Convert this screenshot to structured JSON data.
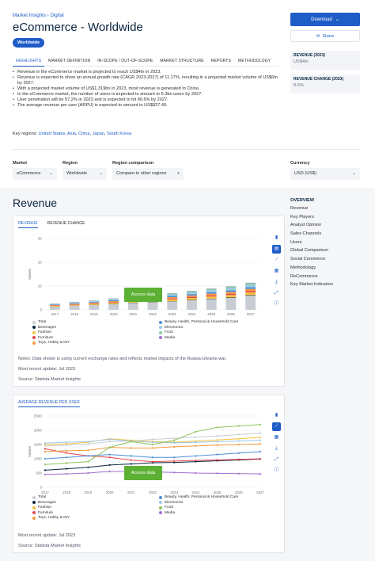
{
  "breadcrumb": "Market Insights › Digital",
  "title": "eCommerce - Worldwide",
  "region_pill": "Worldwide",
  "download_label": "Download",
  "share_label": "Share",
  "kpis": [
    {
      "label": "REVENUE (2023)",
      "value": "US$4tn"
    },
    {
      "label": "REVENUE CHANGE (2023)",
      "value": "9.6%"
    }
  ],
  "tabs": [
    "HIGHLIGHTS",
    "MARKET DEFINITION",
    "IN-SCOPE / OUT-OF-SCOPE",
    "MARKET STRUCTURE",
    "REPORTS",
    "METHODOLOGY"
  ],
  "highlights": [
    "Revenue in the eCommerce market is projected to reach US$4tn in 2023.",
    "Revenue is expected to show an annual growth rate (CAGR 2023-2027) of 11.17%, resulting in a projected market volume of US$6tn by 2027.",
    "With a projected market volume of US$1,319bn in 2023, most revenue is generated in China.",
    "In the eCommerce market, the number of users is expected to amount to 5.3bn users by 2027.",
    "User penetration will be 57.2% in 2023 and is expected to hit 66.6% by 2027.",
    "The average revenue per user (ARPU) is expected to amount to US$827.40."
  ],
  "key_regions_label": "Key regions:",
  "key_regions": "United States, Asia, China, Japan, South Korea",
  "filters": {
    "market_label": "Market",
    "market_value": "eCommerce",
    "region_label": "Region",
    "region_value": "Worldwide",
    "comparison_label": "Region comparison",
    "comparison_value": "Compare to other regions",
    "currency_label": "Currency",
    "currency_value": "USD (US$)"
  },
  "section_title": "Revenue",
  "chart1": {
    "tabs": [
      "REVENUE",
      "REVENUE CHANGE"
    ],
    "access_label": "Access data",
    "notes": "Notes: Data shown is using current exchange rates and reflects market impacts of the Russia-Ukraine war.",
    "update": "Most recent update: Jul 2023",
    "source": "Source: Statista Market Insights"
  },
  "chart2": {
    "tabs": [
      "AVERAGE REVENUE PER USER"
    ],
    "access_label": "Access data",
    "update": "Most recent update: Jul 2023",
    "source": "Source: Statista Market Insights"
  },
  "overview": {
    "title": "OVERVIEW",
    "items": [
      "Revenue",
      "Key Players",
      "Analyst Opinion",
      "Sales Channels",
      "Users",
      "Global Comparison",
      "Social Commerce",
      "Methodology",
      "ReCommerce",
      "Key Market Indicators"
    ]
  },
  "chart_data": [
    {
      "type": "bar",
      "ylabel": "Values",
      "ylim": [
        0,
        30
      ],
      "yticks": [
        0,
        10,
        20,
        30
      ],
      "categories": [
        "2017",
        "2018",
        "2019",
        "2020",
        "2021",
        "2022",
        "2023",
        "2024",
        "2025",
        "2026",
        "2027"
      ],
      "series": [
        {
          "name": "Total",
          "color": "#c8cdd4",
          "values": [
            1.3,
            1.7,
            2.0,
            2.4,
            2.9,
            3.2,
            3.5,
            4.0,
            4.5,
            5.0,
            6.0
          ]
        },
        {
          "name": "Beverages",
          "color": "#0a2540",
          "values": [
            0.05,
            0.06,
            0.07,
            0.09,
            0.1,
            0.11,
            0.12,
            0.14,
            0.15,
            0.17,
            0.18
          ]
        },
        {
          "name": "Fashion",
          "color": "#f5c342",
          "values": [
            0.3,
            0.35,
            0.4,
            0.5,
            0.6,
            0.7,
            0.75,
            0.85,
            0.95,
            1.05,
            1.15
          ]
        },
        {
          "name": "Furniture",
          "color": "#e8474c",
          "values": [
            0.15,
            0.2,
            0.22,
            0.28,
            0.33,
            0.36,
            0.4,
            0.45,
            0.5,
            0.55,
            0.6
          ]
        },
        {
          "name": "Toys, Hobby & DIY",
          "color": "#f39a3d",
          "values": [
            0.2,
            0.25,
            0.3,
            0.38,
            0.45,
            0.5,
            0.55,
            0.6,
            0.7,
            0.75,
            0.85
          ]
        },
        {
          "name": "Beauty, Health, Personal & Household Care",
          "color": "#4e8fd6",
          "values": [
            0.2,
            0.25,
            0.3,
            0.36,
            0.42,
            0.47,
            0.52,
            0.58,
            0.65,
            0.72,
            0.8
          ]
        },
        {
          "name": "Electronics",
          "color": "#9ec7e8",
          "values": [
            0.3,
            0.35,
            0.4,
            0.48,
            0.55,
            0.6,
            0.65,
            0.72,
            0.8,
            0.88,
            0.95
          ]
        },
        {
          "name": "Food",
          "color": "#7fcf9a",
          "values": [
            0.1,
            0.13,
            0.16,
            0.25,
            0.32,
            0.36,
            0.42,
            0.48,
            0.55,
            0.62,
            0.7
          ]
        },
        {
          "name": "Media",
          "color": "#a66fd1",
          "values": [
            0.05,
            0.06,
            0.07,
            0.08,
            0.09,
            0.1,
            0.11,
            0.12,
            0.13,
            0.14,
            0.15
          ]
        }
      ]
    },
    {
      "type": "line",
      "ylabel": "Values",
      "ylim": [
        0,
        2500
      ],
      "yticks": [
        0,
        500,
        1000,
        1500,
        2000,
        2500
      ],
      "categories": [
        "2017",
        "2018",
        "2019",
        "2020",
        "2021",
        "2022",
        "2023",
        "2024",
        "2025",
        "2026",
        "2027"
      ],
      "series": [
        {
          "name": "Total",
          "color": "#c8cdd4",
          "values": [
            1450,
            1480,
            1520,
            1600,
            1620,
            1680,
            1720,
            1760,
            1800,
            1850,
            1900
          ]
        },
        {
          "name": "Beverages",
          "color": "#0a2540",
          "values": [
            600,
            650,
            700,
            780,
            820,
            860,
            870,
            900,
            930,
            960,
            990
          ]
        },
        {
          "name": "Fashion",
          "color": "#f5c342",
          "values": [
            1500,
            1520,
            1580,
            1700,
            1650,
            1600,
            1580,
            1620,
            1660,
            1700,
            1750
          ]
        },
        {
          "name": "Furniture",
          "color": "#e8474c",
          "values": [
            1350,
            1200,
            1100,
            1050,
            950,
            900,
            920,
            940,
            960,
            980,
            1000
          ]
        },
        {
          "name": "Toys, Hobby & DIY",
          "color": "#f39a3d",
          "values": [
            1250,
            1280,
            1300,
            1400,
            1380,
            1380,
            1420,
            1450,
            1480,
            1500,
            1520
          ]
        },
        {
          "name": "Beauty, Health, Personal & Household Care",
          "color": "#4e8fd6",
          "values": [
            1000,
            1050,
            1100,
            1150,
            1100,
            1050,
            1050,
            1100,
            1150,
            1200,
            1250
          ]
        },
        {
          "name": "Electronics",
          "color": "#9ec7e8",
          "values": [
            1550,
            1580,
            1600,
            1680,
            1620,
            1580,
            1560,
            1580,
            1600,
            1620,
            1650
          ]
        },
        {
          "name": "Food",
          "color": "#8fc45a",
          "values": [
            800,
            850,
            900,
            1400,
            1600,
            1500,
            1650,
            1950,
            2100,
            2150,
            2200
          ]
        },
        {
          "name": "Media",
          "color": "#a66fd1",
          "values": [
            450,
            470,
            500,
            560,
            560,
            540,
            520,
            500,
            490,
            480,
            470
          ]
        }
      ]
    }
  ]
}
